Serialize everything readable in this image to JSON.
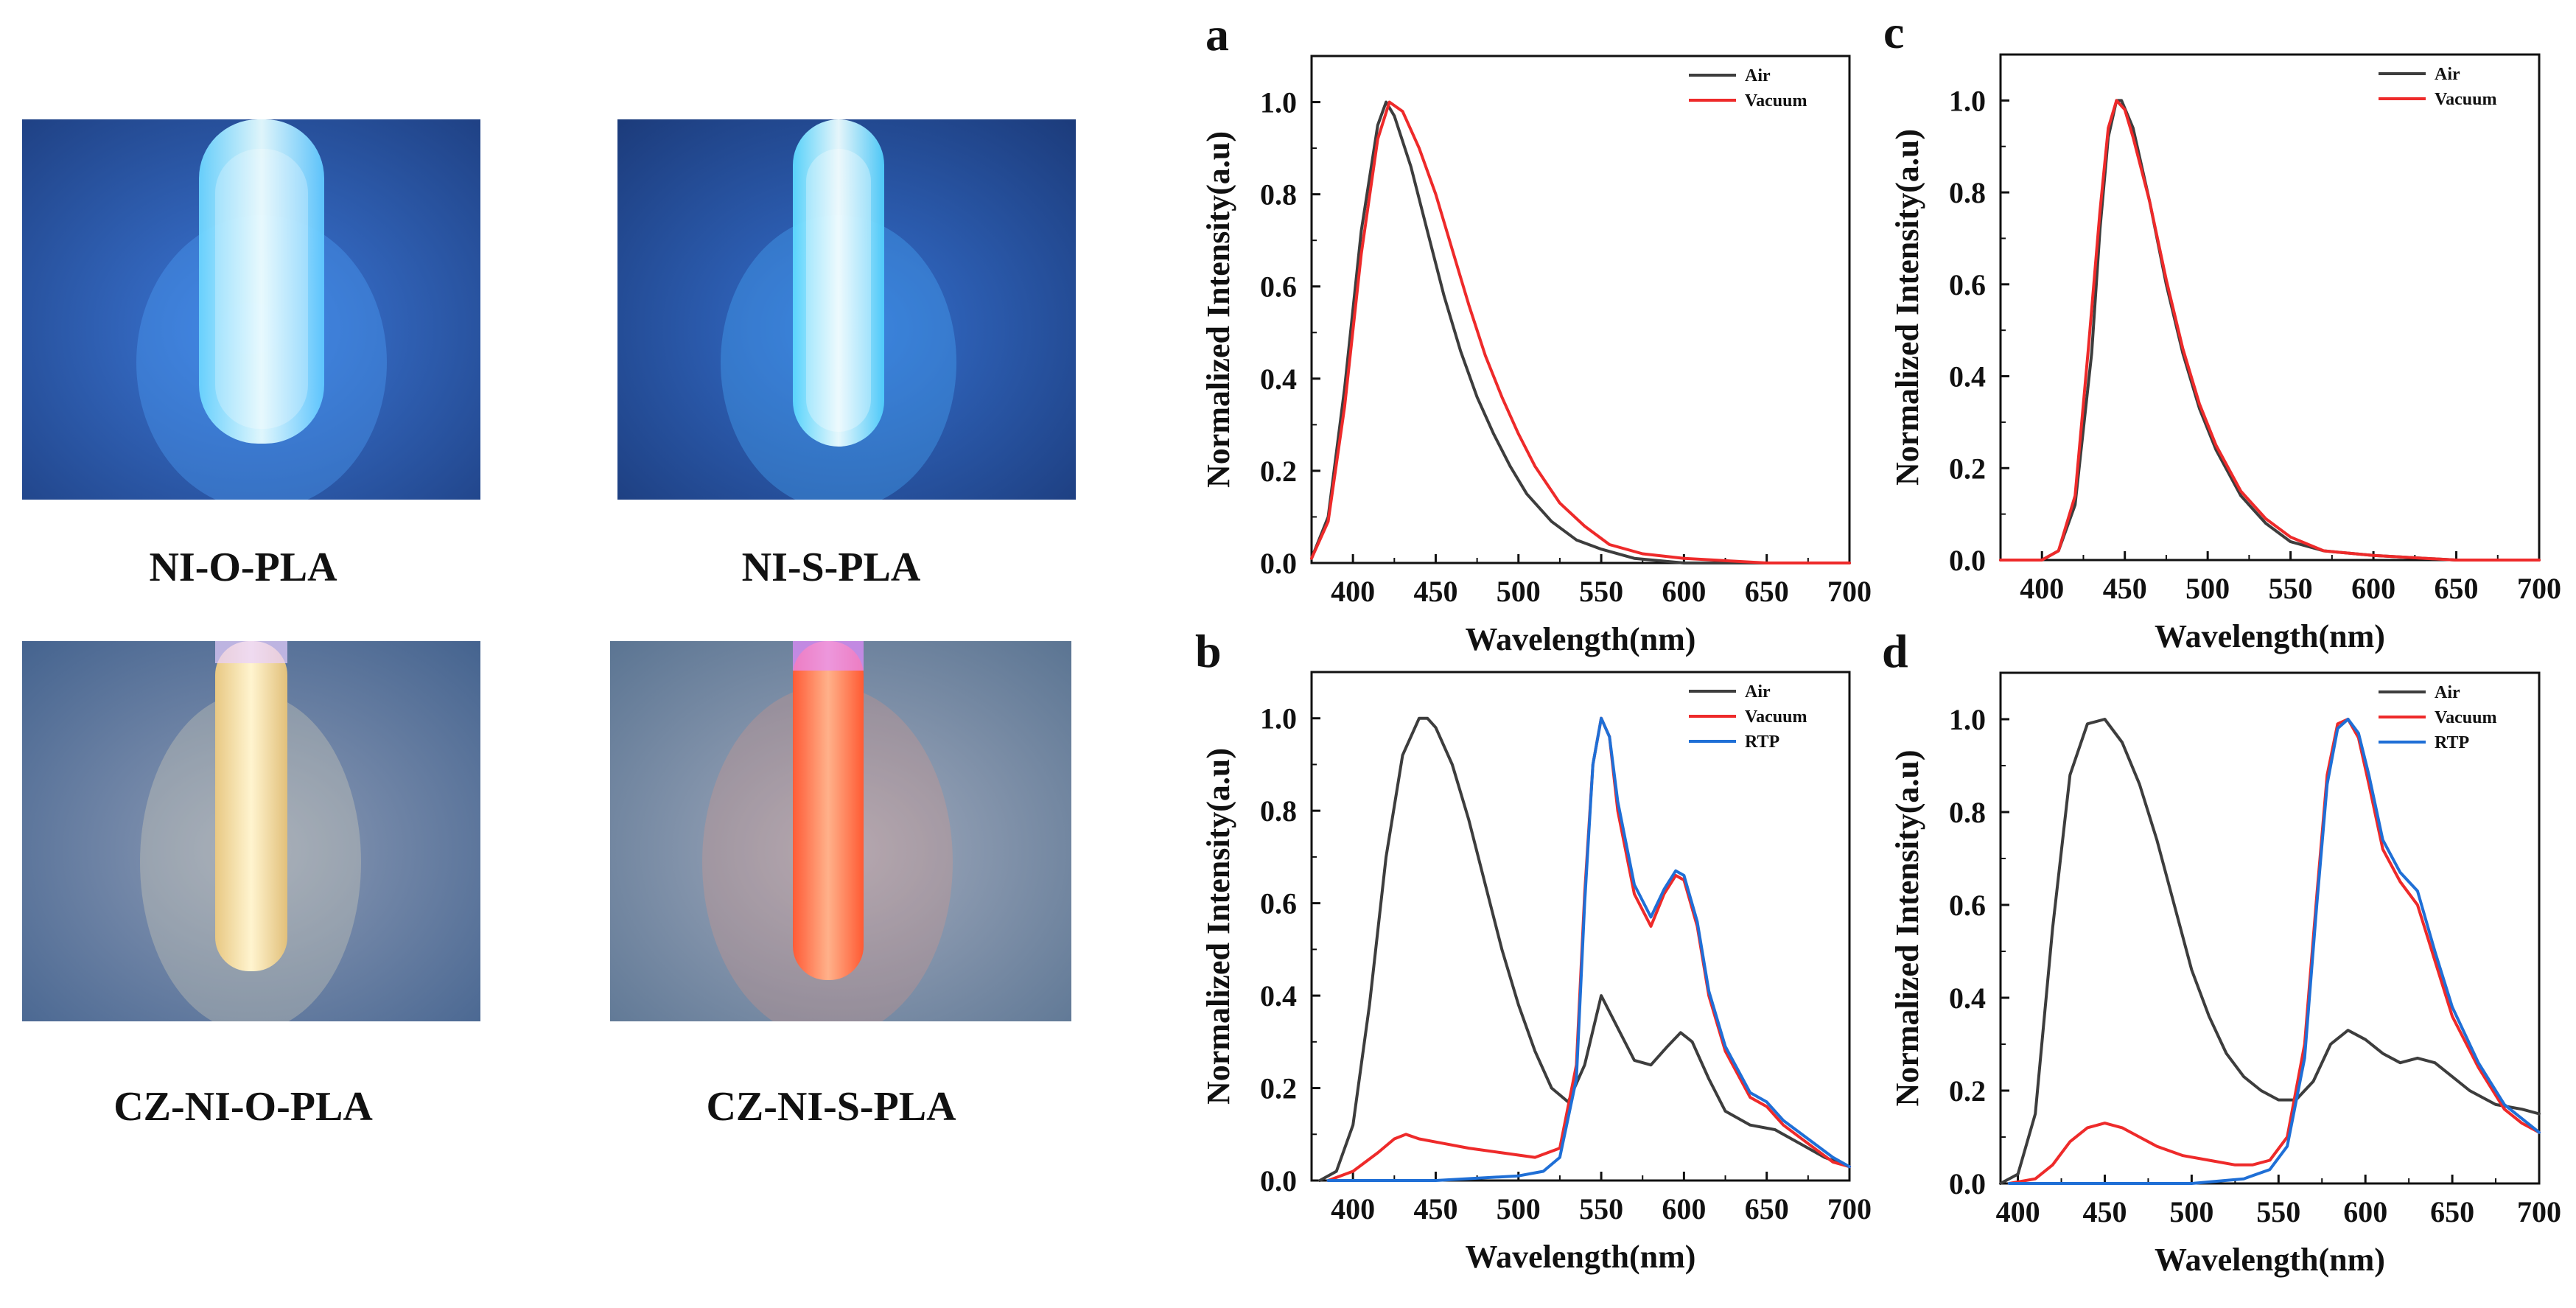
{
  "photos": [
    {
      "label": "NI-O-PLA",
      "glow_color": "#7fe0ff",
      "bg_color": "#2a4f9a",
      "tube_tint": "#bff4ff"
    },
    {
      "label": "NI-S-PLA",
      "glow_color": "#80f0ff",
      "bg_color": "#23448a",
      "tube_tint": "#d4fbff"
    },
    {
      "label": "CZ-NI-O-PLA",
      "glow_color": "#ffe9a6",
      "bg_color": "#5a7296",
      "tube_tint": "#fff1c2"
    },
    {
      "label": "CZ-NI-S-PLA",
      "glow_color": "#ff7a4e",
      "bg_color": "#6b7e98",
      "tube_tint": "#ffb89a"
    }
  ],
  "series_colors": {
    "Air": "#3d3d3d",
    "Vacuum": "#ee2a2a",
    "RTP": "#1f6fd6"
  },
  "chart_data": [
    {
      "panel": "a",
      "type": "line",
      "xlabel": "Wavelength(nm)",
      "ylabel": "Normalized Intensity(a.u)",
      "xlim": [
        375,
        700
      ],
      "ylim": [
        0,
        1.1
      ],
      "xticks": [
        400,
        450,
        500,
        550,
        600,
        650,
        700
      ],
      "yticks": [
        0.0,
        0.2,
        0.4,
        0.6,
        0.8,
        1.0
      ],
      "legend": "top-right",
      "series": [
        {
          "name": "Air",
          "x": [
            375,
            385,
            395,
            405,
            415,
            420,
            425,
            435,
            445,
            455,
            465,
            475,
            485,
            495,
            505,
            520,
            535,
            550,
            570,
            600,
            650,
            700
          ],
          "y": [
            0.01,
            0.1,
            0.38,
            0.72,
            0.95,
            1.0,
            0.97,
            0.86,
            0.72,
            0.58,
            0.46,
            0.36,
            0.28,
            0.21,
            0.15,
            0.09,
            0.05,
            0.03,
            0.01,
            0.0,
            0.0,
            0.0
          ]
        },
        {
          "name": "Vacuum",
          "x": [
            375,
            385,
            395,
            405,
            415,
            422,
            430,
            440,
            450,
            460,
            470,
            480,
            490,
            500,
            510,
            525,
            540,
            555,
            575,
            600,
            650,
            700
          ],
          "y": [
            0.01,
            0.09,
            0.34,
            0.67,
            0.92,
            1.0,
            0.98,
            0.9,
            0.8,
            0.68,
            0.56,
            0.45,
            0.36,
            0.28,
            0.21,
            0.13,
            0.08,
            0.04,
            0.02,
            0.01,
            0.0,
            0.0
          ]
        }
      ]
    },
    {
      "panel": "b",
      "type": "line",
      "xlabel": "Wavelength(nm)",
      "ylabel": "Normalized Intensity(a.u)",
      "xlim": [
        375,
        700
      ],
      "ylim": [
        0,
        1.1
      ],
      "xticks": [
        400,
        450,
        500,
        550,
        600,
        650,
        700
      ],
      "yticks": [
        0.0,
        0.2,
        0.4,
        0.6,
        0.8,
        1.0
      ],
      "legend": "top-right",
      "series": [
        {
          "name": "Air",
          "x": [
            380,
            390,
            400,
            410,
            420,
            430,
            440,
            445,
            450,
            460,
            470,
            480,
            490,
            500,
            510,
            520,
            530,
            540,
            550,
            560,
            570,
            580,
            590,
            598,
            605,
            615,
            625,
            640,
            655,
            670,
            685,
            700
          ],
          "y": [
            0.0,
            0.02,
            0.12,
            0.38,
            0.7,
            0.92,
            1.0,
            1.0,
            0.98,
            0.9,
            0.78,
            0.64,
            0.5,
            0.38,
            0.28,
            0.2,
            0.17,
            0.25,
            0.4,
            0.33,
            0.26,
            0.25,
            0.29,
            0.32,
            0.3,
            0.22,
            0.15,
            0.12,
            0.11,
            0.08,
            0.05,
            0.03
          ]
        },
        {
          "name": "Vacuum",
          "x": [
            385,
            400,
            415,
            425,
            432,
            440,
            455,
            470,
            490,
            510,
            525,
            535,
            540,
            545,
            550,
            555,
            560,
            570,
            580,
            588,
            595,
            600,
            608,
            615,
            625,
            640,
            650,
            660,
            675,
            690,
            700
          ],
          "y": [
            0.0,
            0.02,
            0.06,
            0.09,
            0.1,
            0.09,
            0.08,
            0.07,
            0.06,
            0.05,
            0.07,
            0.25,
            0.62,
            0.9,
            1.0,
            0.96,
            0.8,
            0.62,
            0.55,
            0.62,
            0.66,
            0.65,
            0.55,
            0.4,
            0.28,
            0.18,
            0.16,
            0.12,
            0.08,
            0.04,
            0.03
          ]
        },
        {
          "name": "RTP",
          "x": [
            385,
            400,
            450,
            500,
            515,
            525,
            535,
            540,
            545,
            550,
            555,
            560,
            570,
            580,
            588,
            595,
            600,
            608,
            615,
            625,
            640,
            650,
            660,
            675,
            690,
            700
          ],
          "y": [
            0.0,
            0.0,
            0.0,
            0.01,
            0.02,
            0.05,
            0.22,
            0.6,
            0.9,
            1.0,
            0.96,
            0.82,
            0.64,
            0.57,
            0.63,
            0.67,
            0.66,
            0.56,
            0.41,
            0.29,
            0.19,
            0.17,
            0.13,
            0.09,
            0.05,
            0.03
          ]
        }
      ]
    },
    {
      "panel": "c",
      "type": "line",
      "xlabel": "Wavelength(nm)",
      "ylabel": "Normalized Intensity(a.u)",
      "xlim": [
        375,
        700
      ],
      "ylim": [
        0,
        1.1
      ],
      "xticks": [
        400,
        450,
        500,
        550,
        600,
        650,
        700
      ],
      "yticks": [
        0.0,
        0.2,
        0.4,
        0.6,
        0.8,
        1.0
      ],
      "legend": "top-right",
      "series": [
        {
          "name": "Air",
          "x": [
            375,
            400,
            410,
            420,
            430,
            435,
            440,
            445,
            448,
            455,
            465,
            475,
            485,
            495,
            505,
            520,
            535,
            550,
            570,
            600,
            650,
            700
          ],
          "y": [
            0.0,
            0.0,
            0.02,
            0.12,
            0.45,
            0.72,
            0.92,
            1.0,
            1.0,
            0.94,
            0.78,
            0.6,
            0.45,
            0.33,
            0.24,
            0.14,
            0.08,
            0.04,
            0.02,
            0.01,
            0.0,
            0.0
          ]
        },
        {
          "name": "Vacuum",
          "x": [
            375,
            400,
            410,
            420,
            428,
            435,
            440,
            445,
            450,
            455,
            465,
            475,
            485,
            495,
            505,
            520,
            535,
            550,
            570,
            600,
            650,
            700
          ],
          "y": [
            0.0,
            0.0,
            0.02,
            0.14,
            0.46,
            0.76,
            0.94,
            1.0,
            0.98,
            0.92,
            0.78,
            0.61,
            0.46,
            0.34,
            0.25,
            0.15,
            0.09,
            0.05,
            0.02,
            0.01,
            0.0,
            0.0
          ]
        }
      ]
    },
    {
      "panel": "d",
      "type": "line",
      "xlabel": "Wavelength(nm)",
      "ylabel": "Normalized Intensity(a.u)",
      "xlim": [
        390,
        700
      ],
      "ylim": [
        0,
        1.1
      ],
      "xticks": [
        400,
        450,
        500,
        550,
        600,
        650,
        700
      ],
      "yticks": [
        0.0,
        0.2,
        0.4,
        0.6,
        0.8,
        1.0
      ],
      "legend": "top-right",
      "series": [
        {
          "name": "Air",
          "x": [
            390,
            400,
            410,
            420,
            430,
            440,
            450,
            460,
            470,
            480,
            490,
            500,
            510,
            520,
            530,
            540,
            550,
            560,
            570,
            580,
            590,
            600,
            610,
            620,
            630,
            640,
            650,
            660,
            675,
            690,
            700
          ],
          "y": [
            0.0,
            0.02,
            0.15,
            0.55,
            0.88,
            0.99,
            1.0,
            0.95,
            0.86,
            0.74,
            0.6,
            0.46,
            0.36,
            0.28,
            0.23,
            0.2,
            0.18,
            0.18,
            0.22,
            0.3,
            0.33,
            0.31,
            0.28,
            0.26,
            0.27,
            0.26,
            0.23,
            0.2,
            0.17,
            0.16,
            0.15
          ]
        },
        {
          "name": "Vacuum",
          "x": [
            395,
            410,
            420,
            430,
            440,
            450,
            460,
            470,
            480,
            495,
            510,
            525,
            535,
            545,
            555,
            565,
            572,
            578,
            584,
            590,
            596,
            602,
            610,
            620,
            630,
            640,
            650,
            665,
            680,
            690,
            700
          ],
          "y": [
            0.0,
            0.01,
            0.04,
            0.09,
            0.12,
            0.13,
            0.12,
            0.1,
            0.08,
            0.06,
            0.05,
            0.04,
            0.04,
            0.05,
            0.1,
            0.3,
            0.62,
            0.88,
            0.99,
            1.0,
            0.96,
            0.86,
            0.72,
            0.65,
            0.6,
            0.48,
            0.36,
            0.25,
            0.16,
            0.13,
            0.11
          ]
        },
        {
          "name": "RTP",
          "x": [
            395,
            450,
            500,
            530,
            545,
            555,
            565,
            572,
            578,
            584,
            590,
            596,
            602,
            610,
            620,
            630,
            640,
            650,
            665,
            680,
            690,
            700
          ],
          "y": [
            0.0,
            0.0,
            0.0,
            0.01,
            0.03,
            0.08,
            0.27,
            0.6,
            0.86,
            0.98,
            1.0,
            0.97,
            0.88,
            0.74,
            0.67,
            0.63,
            0.5,
            0.38,
            0.26,
            0.17,
            0.14,
            0.11
          ]
        }
      ]
    }
  ]
}
